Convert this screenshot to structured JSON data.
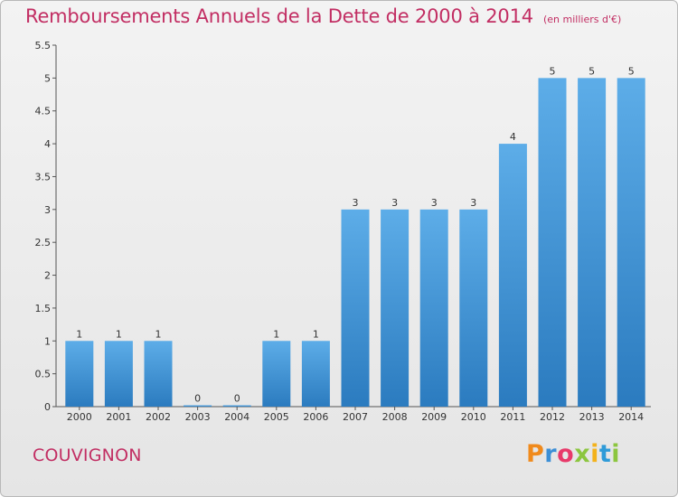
{
  "header": {
    "title": "Remboursements Annuels de la Dette de 2000 à 2014",
    "subtitle": "(en milliers d'€)"
  },
  "footer": {
    "commune": "COUVIGNON",
    "logo_letters": [
      "P",
      "r",
      "o",
      "x",
      "i",
      "t",
      "i"
    ]
  },
  "colors": {
    "bar_light": "#5dade8",
    "bar_dark": "#2b7bbf",
    "title": "#c22e63",
    "axis": "#555555"
  },
  "chart_data": {
    "type": "bar",
    "title": "Remboursements Annuels de la Dette de 2000 à 2014",
    "subtitle": "(en milliers d'€)",
    "xlabel": "",
    "ylabel": "",
    "categories": [
      "2000",
      "2001",
      "2002",
      "2003",
      "2004",
      "2005",
      "2006",
      "2007",
      "2008",
      "2009",
      "2010",
      "2011",
      "2012",
      "2013",
      "2014"
    ],
    "values": [
      1,
      1,
      1,
      0,
      0,
      1,
      1,
      3,
      3,
      3,
      3,
      4,
      5,
      5,
      5
    ],
    "data_labels": [
      "1",
      "1",
      "1",
      "0",
      "0",
      "1",
      "1",
      "3",
      "3",
      "3",
      "3",
      "4",
      "5",
      "5",
      "5"
    ],
    "ylim": [
      0,
      5.5
    ],
    "yticks": [
      "0",
      "0.5",
      "1",
      "1.5",
      "2",
      "2.5",
      "3",
      "3.5",
      "4",
      "4.5",
      "5",
      "5.5"
    ],
    "ytick_values": [
      0,
      0.5,
      1,
      1.5,
      2,
      2.5,
      3,
      3.5,
      4,
      4.5,
      5,
      5.5
    ],
    "grid": false,
    "legend": "none"
  }
}
